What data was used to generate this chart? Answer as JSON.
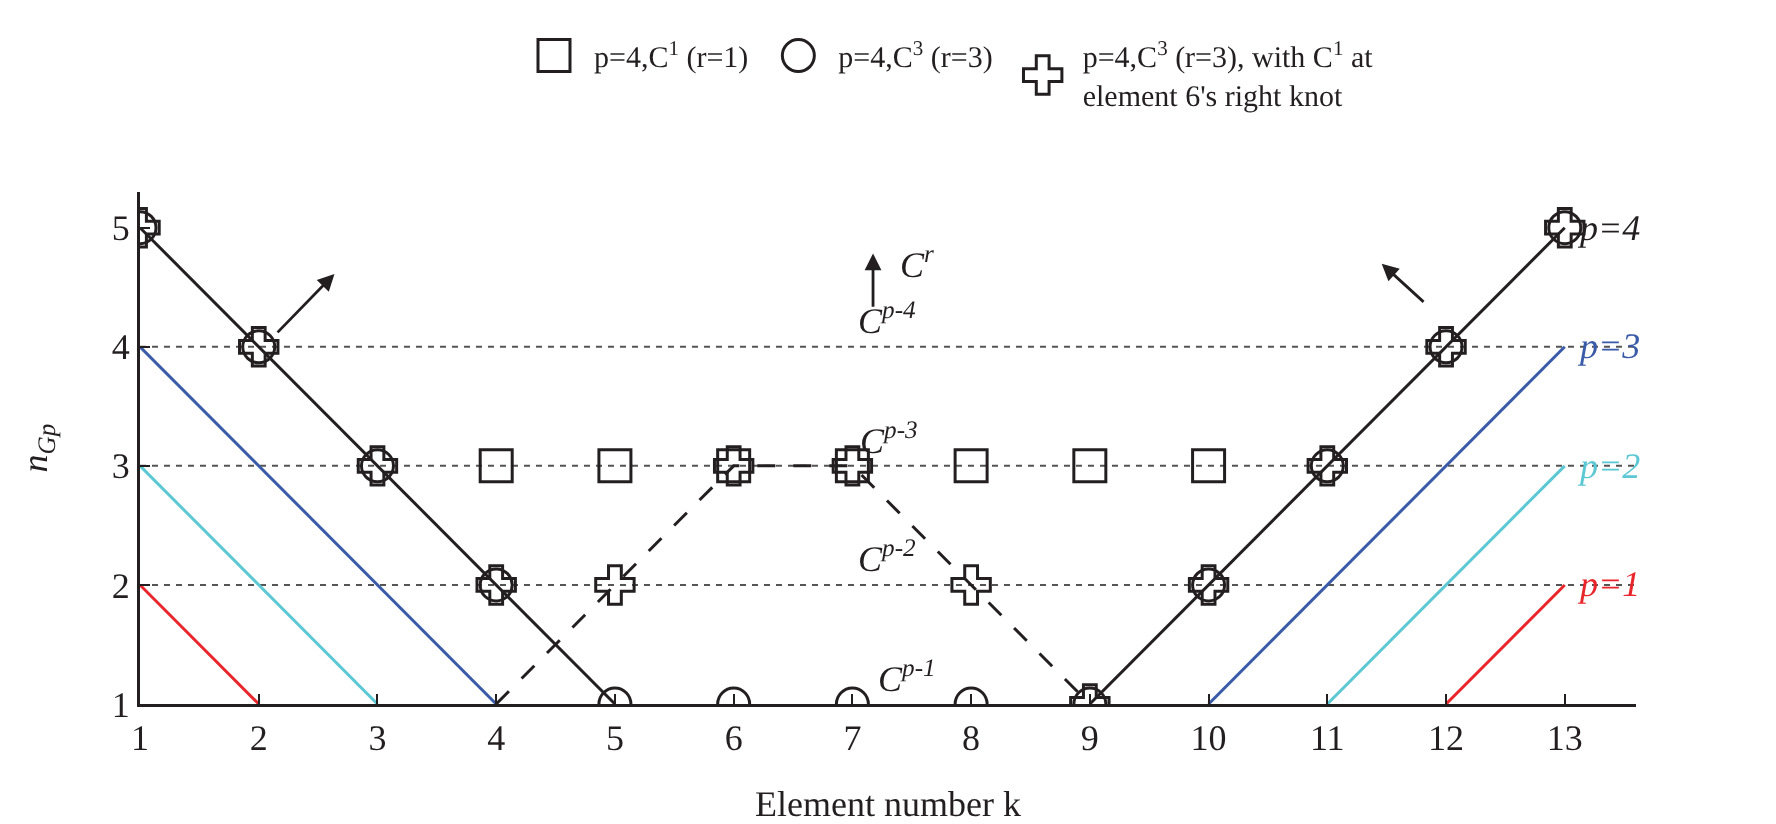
{
  "chart_data": {
    "type": "line",
    "xlabel": "Element number k",
    "ylabel": "n$_{Gp}$",
    "xlim": [
      1,
      13.6
    ],
    "ylim": [
      1,
      5.3
    ],
    "xticks": [
      1,
      2,
      3,
      4,
      5,
      6,
      7,
      8,
      9,
      10,
      11,
      12,
      13
    ],
    "yticks": [
      1,
      2,
      3,
      4,
      5
    ],
    "grid": false,
    "legend": "top",
    "series": [
      {
        "name": "p=1",
        "color": "#e8262b",
        "x": [
          1,
          2,
          null,
          12,
          13
        ],
        "values": [
          2,
          1,
          null,
          1,
          2
        ],
        "marker": "none",
        "line_style": "solid"
      },
      {
        "name": "p=2",
        "color": "#5bc8d4",
        "x": [
          1,
          3,
          null,
          11,
          13
        ],
        "values": [
          3,
          1,
          null,
          1,
          3
        ],
        "marker": "none",
        "line_style": "solid"
      },
      {
        "name": "p=3",
        "color": "#3a5ba8",
        "x": [
          1,
          4,
          null,
          10,
          13
        ],
        "values": [
          4,
          1,
          null,
          1,
          4
        ],
        "marker": "none",
        "line_style": "solid"
      },
      {
        "name": "p=4",
        "color": "#231f20",
        "x": [
          1,
          5,
          null,
          9,
          13
        ],
        "values": [
          5,
          1,
          null,
          1,
          5
        ],
        "marker": "none",
        "line_style": "solid"
      },
      {
        "color": "#231f20",
        "x": [
          4,
          6,
          7,
          9
        ],
        "values": [
          1,
          3,
          3,
          1
        ],
        "marker": "none",
        "line_style": "dashed"
      },
      {
        "type": "scatter",
        "name": "p=4,C$^{1}$ (r=1)",
        "color": "#231f20",
        "x": [
          4,
          5,
          6,
          7,
          8,
          9,
          10
        ],
        "values": [
          3,
          3,
          3,
          3,
          3,
          3,
          3
        ],
        "marker": "square"
      },
      {
        "type": "scatter",
        "name": "p=4,C$^{3}$ (r=3)",
        "color": "#231f20",
        "x": [
          1,
          2,
          3,
          4,
          5,
          6,
          7,
          8,
          9,
          10,
          11,
          12,
          13
        ],
        "values": [
          5,
          4,
          3,
          2,
          1,
          1,
          1,
          1,
          1,
          2,
          3,
          4,
          5
        ],
        "marker": "circle"
      },
      {
        "type": "scatter",
        "name": "p=4,C$^{3}$ (r=3), with C$^{1}$ at\nelement 6's right knot",
        "color": "#231f20",
        "x": [
          1,
          2,
          3,
          4,
          5,
          6,
          7,
          8,
          9,
          10,
          11,
          12,
          13
        ],
        "values": [
          5,
          4,
          3,
          2,
          2,
          3,
          3,
          2,
          1,
          2,
          3,
          4,
          5
        ],
        "marker": "cross"
      }
    ],
    "ref_lines": [
      {
        "axis": "y",
        "value": 4,
        "label": "C$^{p-4}$",
        "color": "#555555",
        "line_style": "dotted"
      },
      {
        "axis": "y",
        "value": 3,
        "label": "C$^{p-3}$",
        "color": "#555555",
        "line_style": "dotted"
      },
      {
        "axis": "y",
        "value": 2,
        "label": "C$^{p-2}$",
        "color": "#555555",
        "line_style": "dotted"
      }
    ],
    "annotations": [
      "C$^{p-1}$",
      "C$^{r}$"
    ]
  }
}
